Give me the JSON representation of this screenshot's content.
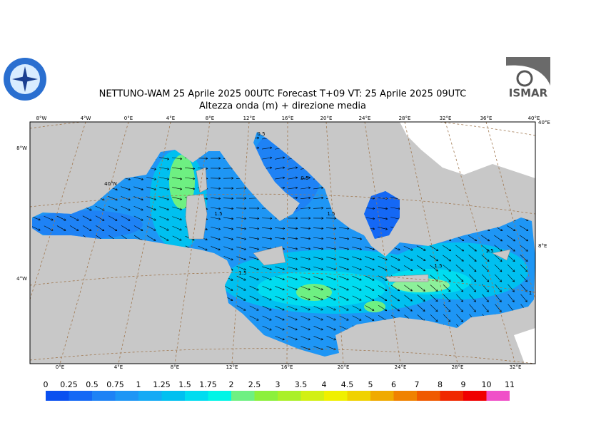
{
  "header": {
    "title": "NETTUNO-WAM  25   Aprile  2025 00UTC Forecast T+09 VT: 25   Aprile  2025 09UTC",
    "subtitle": "Altezza onda (m) + direzione media",
    "logo_right": "ISMAR"
  },
  "map": {
    "top_labels": [
      "8°W",
      "4°W",
      "0°E",
      "4°E",
      "8°E",
      "12°E",
      "16°E",
      "20°E",
      "24°E",
      "28°E",
      "32°E",
      "36°E",
      "40°E"
    ],
    "bottom_labels": [
      "0°E",
      "4°E",
      "8°E",
      "12°E",
      "16°E",
      "20°E",
      "24°E",
      "28°E",
      "32°E"
    ],
    "left_labels": [
      "8°W",
      "4°W"
    ],
    "right_labels": [
      "40°E",
      "8°E"
    ],
    "inner_labels": [
      "40°N"
    ],
    "contour_labels": [
      "0.5",
      "0.5",
      "1.5",
      "1.5",
      "1.5",
      "1.5",
      "1.5",
      "1"
    ]
  },
  "colorbar": {
    "labels": [
      0,
      0.25,
      0.5,
      0.75,
      1,
      1.25,
      1.5,
      1.75,
      2,
      2.5,
      3,
      3.5,
      4,
      4.5,
      5,
      6,
      7,
      8,
      9,
      10,
      11
    ],
    "colors": [
      "#0a50f0",
      "#1468f5",
      "#1e82f5",
      "#1e96f5",
      "#14aaf5",
      "#00c0f0",
      "#00dcf0",
      "#00f5e6",
      "#6ef082",
      "#8cf03c",
      "#aaf028",
      "#d2f014",
      "#f0f000",
      "#f0d200",
      "#f0aa00",
      "#f08200",
      "#f05a00",
      "#f02800",
      "#f00000",
      "#f050c8"
    ]
  }
}
